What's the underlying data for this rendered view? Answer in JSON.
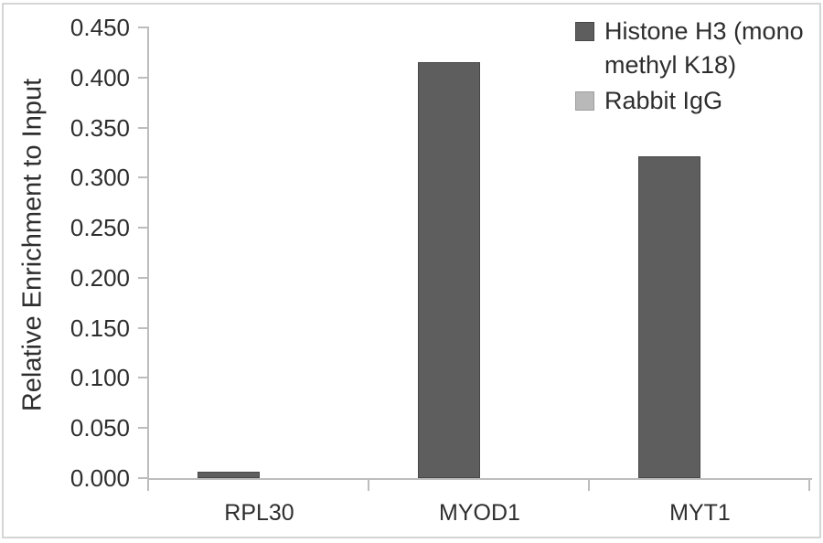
{
  "chart_data": {
    "type": "bar",
    "title": "",
    "ylabel": "Relative Enrichment to Input",
    "xlabel": "",
    "categories": [
      "RPL30",
      "MYOD1",
      "MYT1"
    ],
    "series": [
      {
        "name": "Histone H3 (mono methyl K18)",
        "values": [
          0.006,
          0.415,
          0.321
        ],
        "color": "#5e5e5e",
        "border_color": "#474747"
      },
      {
        "name": "Rabbit IgG",
        "values": [
          0,
          0,
          0
        ],
        "color": "#b9b9b9",
        "border_color": "#9e9e9e"
      }
    ],
    "ylim": [
      0,
      0.45
    ],
    "ytick_labels": [
      "0.000",
      "0.050",
      "0.100",
      "0.150",
      "0.200",
      "0.250",
      "0.300",
      "0.350",
      "0.400",
      "0.450"
    ],
    "grid": false,
    "legend_position": "top-right",
    "axis_color": "#bdbdbd",
    "text_color": "#2e2e2e",
    "frame_color": "#d5d5d5"
  }
}
